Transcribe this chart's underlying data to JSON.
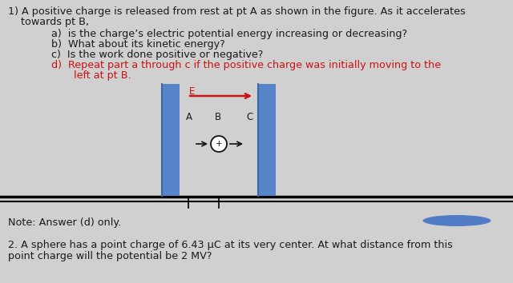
{
  "bg_color": "#d0d0d0",
  "text_color_black": "#1a1a1a",
  "text_color_red": "#cc1111",
  "line1": "1) A positive charge is released from rest at pt A as shown in the figure. As it accelerates",
  "line2": "    towards pt B,",
  "item_a": "a)  is the charge’s electric potential energy increasing or decreasing?",
  "item_b": "b)  What about its kinetic energy?",
  "item_c": "c)  Is the work done positive or negative?",
  "item_d": "d)  Repeat part a through c if the positive charge was initially moving to the",
  "item_d2": "       left at pt B.",
  "note": "Note: Answer (d) only.",
  "q2_line1": "2. A sphere has a point charge of 6.43 μC at its very center. At what distance from this",
  "q2_line2": "point charge will the potential be 2 MV?",
  "plate_color": "#5585c8",
  "arrow_color_red": "#cc1111",
  "label_E": "E",
  "label_A": "A",
  "label_B": "B",
  "label_C": "C",
  "ellipse_color": "#4472c4",
  "font_size_main": 9.2,
  "font_size_diagram": 8.5
}
